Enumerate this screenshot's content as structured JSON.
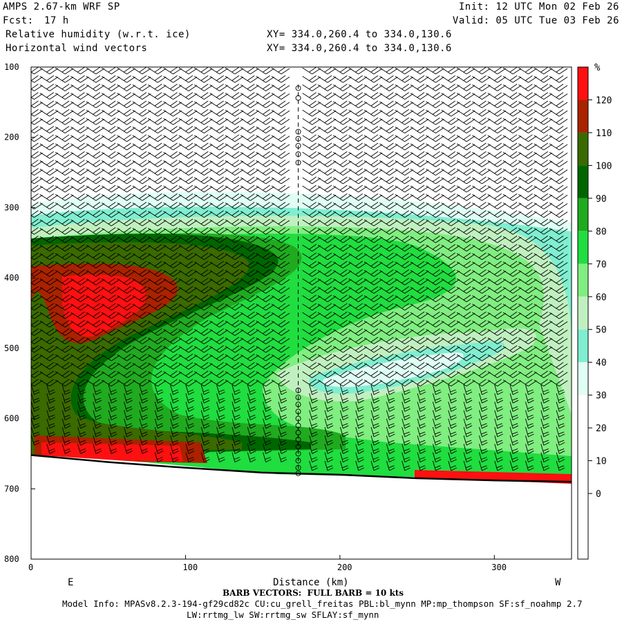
{
  "header": {
    "model": "AMPS 2.67-km WRF SP",
    "fcst_label": "Fcst:",
    "fcst_value": "17 h",
    "field": "Relative humidity (w.r.t. ice)",
    "vectors": "Horizontal wind vectors",
    "init": "Init: 12 UTC Mon 02 Feb 26",
    "valid": "Valid: 05 UTC Tue 03 Feb 26",
    "xy_field": "XY= 334.0,260.4 to 334.0,130.6",
    "xy_vectors": "XY= 334.0,260.4 to 334.0,130.6"
  },
  "footer": {
    "barb_note": "BARB VECTORS:  FULL BARB = 10 kts",
    "model_info_1": "Model Info: MPASv8.2.3-194-gf29cd82c CU:cu_grell_freitas PBL:bl_mynn MP:mp_thompson SF:sf_noahmp 2.7",
    "model_info_2": "LW:rrtmg_lw SW:rrtmg_sw SFLAY:sf_mynn"
  },
  "chart_data": {
    "type": "heatmap",
    "title": "Relative humidity (w.r.t. ice)",
    "xlabel": "Distance (km)",
    "ylabel": "",
    "xlim": [
      0,
      350
    ],
    "ylim": [
      800,
      100
    ],
    "x_ticks": [
      0,
      100,
      200,
      300
    ],
    "y_ticks": [
      100,
      200,
      300,
      400,
      500,
      600,
      700,
      800
    ],
    "x_end_labels": {
      "left": "E",
      "right": "W"
    },
    "colorbar": {
      "unit": "%",
      "levels": [
        0,
        10,
        20,
        30,
        40,
        50,
        60,
        70,
        80,
        90,
        100,
        110,
        120
      ],
      "colors": [
        "#ffffff",
        "#ffffff",
        "#ffffff",
        "#ffffff",
        "#ffffff",
        "#e0fff4",
        "#80eed0",
        "#c0f0c0",
        "#80ee80",
        "#20dd40",
        "#20aa20",
        "#006600",
        "#3a6a00",
        "#aa2200",
        "#ff1010"
      ]
    },
    "terrain_pressure": [
      {
        "x": 0,
        "p": 652
      },
      {
        "x": 50,
        "p": 662
      },
      {
        "x": 100,
        "p": 670
      },
      {
        "x": 150,
        "p": 677
      },
      {
        "x": 200,
        "p": 680
      },
      {
        "x": 250,
        "p": 685
      },
      {
        "x": 300,
        "p": 688
      },
      {
        "x": 350,
        "p": 690
      }
    ],
    "vertical_marker_x": 173
  }
}
